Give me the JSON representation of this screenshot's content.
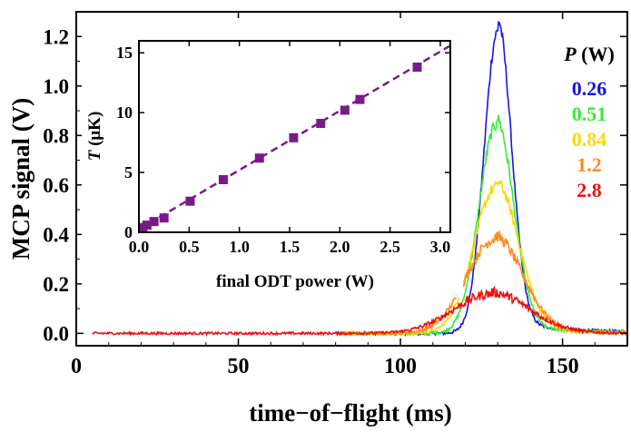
{
  "chart_data": [
    {
      "type": "line",
      "xlabel": "time−of−flight (ms)",
      "ylabel": "MCP signal (V)",
      "xlim": [
        0,
        170
      ],
      "ylim": [
        -0.05,
        1.3
      ],
      "xticks": [
        0,
        50,
        100,
        150
      ],
      "xtick_labels": [
        "0",
        "50",
        "100",
        "150"
      ],
      "yticks": [
        0.0,
        0.2,
        0.4,
        0.6,
        0.8,
        1.0,
        1.2
      ],
      "ytick_labels": [
        "0.0",
        "0.2",
        "0.4",
        "0.6",
        "0.8",
        "1.0",
        "1.2"
      ],
      "grid": false,
      "legend": {
        "title_symbol": "P",
        "title_unit": " (W)",
        "placement": "top-right"
      },
      "series": [
        {
          "name": "0.26",
          "color": "#1515e6",
          "peak_time": 130,
          "peak": 1.22,
          "width": 4.2,
          "noise": 0.012,
          "start": 80
        },
        {
          "name": "0.51",
          "color": "#33ee33",
          "peak_time": 129.5,
          "peak": 0.84,
          "width": 5.3,
          "noise": 0.012,
          "start": 80
        },
        {
          "name": "0.84",
          "color": "#ffd800",
          "peak_time": 129.5,
          "peak": 0.59,
          "width": 6.9,
          "noise": 0.012,
          "start": 80
        },
        {
          "name": "1.2",
          "color": "#ff8a1e",
          "peak_time": 129,
          "peak": 0.38,
          "width": 8.6,
          "noise": 0.012,
          "start": 80
        },
        {
          "name": "2.8",
          "color": "#ee1010",
          "peak_time": 128,
          "peak": 0.16,
          "width": 11.5,
          "noise": 0.01,
          "start": 5
        }
      ]
    },
    {
      "type": "scatter",
      "xlabel": "final ODT power (W)",
      "ylabel_symbol": "T",
      "ylabel_unit": " (μK)",
      "xlim": [
        0,
        3.1
      ],
      "ylim": [
        0,
        16
      ],
      "xticks": [
        0.0,
        0.5,
        1.0,
        1.5,
        2.0,
        2.5,
        3.0
      ],
      "xtick_labels": [
        "0.0",
        "0.5",
        "1.0",
        "1.5",
        "2.0",
        "2.5",
        "3.0"
      ],
      "yticks": [
        0,
        5,
        10,
        15
      ],
      "ytick_labels": [
        "0",
        "5",
        "10",
        "15"
      ],
      "marker_color": "#7a1a8a",
      "points": {
        "x": [
          0.04,
          0.08,
          0.15,
          0.25,
          0.51,
          0.84,
          1.2,
          1.54,
          1.81,
          2.05,
          2.2,
          2.77
        ],
        "y": [
          0.4,
          0.6,
          0.9,
          1.2,
          2.6,
          4.4,
          6.2,
          7.9,
          9.1,
          10.2,
          11.1,
          13.8
        ]
      },
      "fit": {
        "x": [
          0,
          3.1
        ],
        "y": [
          0.25,
          15.6
        ],
        "style": "dashed"
      }
    }
  ]
}
